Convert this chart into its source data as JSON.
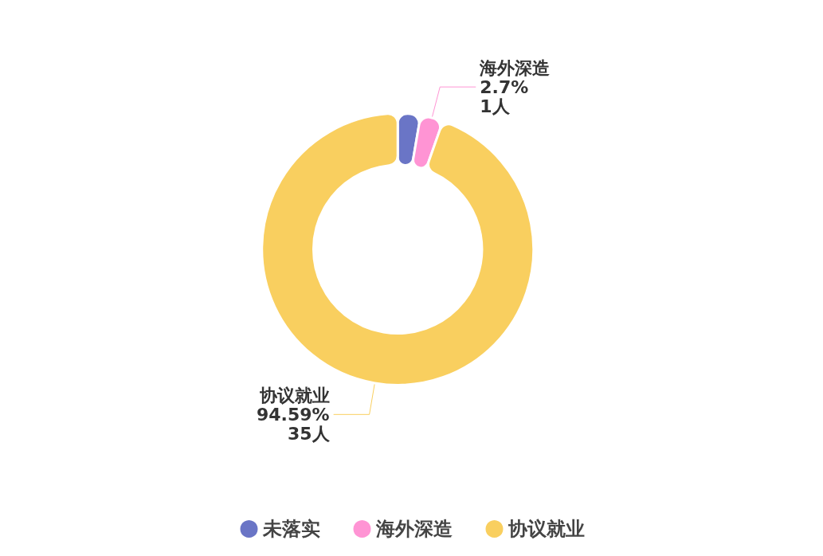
{
  "chart_data": {
    "type": "donut",
    "categories": [
      "未落实",
      "海外深造",
      "协议就业"
    ],
    "values": [
      1,
      1,
      35
    ],
    "colors": [
      "#6a75c6",
      "#ff94d4",
      "#f9cf5f"
    ],
    "value_labels": [
      null,
      "2.7%\n1人",
      "94.59%\n35人"
    ],
    "legend": "bottom"
  }
}
